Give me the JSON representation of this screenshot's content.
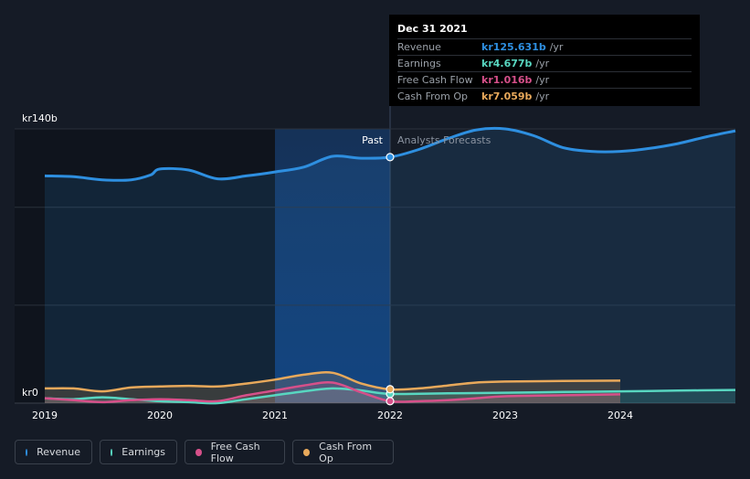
{
  "chart_data": {
    "type": "line",
    "y_top_label": "kr140b",
    "y_zero_label": "kr0",
    "ylim": [
      0,
      140
    ],
    "xlim": [
      2019,
      2024.99
    ],
    "x_ticks": [
      2019,
      2020,
      2021,
      2022,
      2023,
      2024
    ],
    "x_tick_labels": [
      "2019",
      "2020",
      "2021",
      "2022",
      "2023",
      "2024"
    ],
    "past_label": "Past",
    "forecast_label": "Analysts Forecasts",
    "divider_x": 2022.0,
    "highlight_start_x": 2021.0,
    "series": [
      {
        "name": "Revenue",
        "color": "#2e8fe0",
        "area": true,
        "points": [
          [
            2019.0,
            116.0
          ],
          [
            2019.25,
            115.6
          ],
          [
            2019.5,
            114.0
          ],
          [
            2019.75,
            114.0
          ],
          [
            2019.92,
            116.5
          ],
          [
            2020.0,
            119.5
          ],
          [
            2020.25,
            119.0
          ],
          [
            2020.5,
            114.5
          ],
          [
            2020.75,
            116.0
          ],
          [
            2021.0,
            118.0
          ],
          [
            2021.25,
            120.5
          ],
          [
            2021.5,
            126.0
          ],
          [
            2021.75,
            125.0
          ],
          [
            2022.0,
            125.6
          ],
          [
            2022.25,
            129.5
          ],
          [
            2022.5,
            135.0
          ],
          [
            2022.75,
            139.5
          ],
          [
            2023.0,
            140.0
          ],
          [
            2023.25,
            136.5
          ],
          [
            2023.5,
            130.5
          ],
          [
            2023.75,
            128.5
          ],
          [
            2024.0,
            128.5
          ],
          [
            2024.25,
            130.0
          ],
          [
            2024.5,
            132.5
          ],
          [
            2024.75,
            136.0
          ],
          [
            2025.0,
            139.0
          ]
        ]
      },
      {
        "name": "Earnings",
        "color": "#58d6c0",
        "points": [
          [
            2019.0,
            2.5
          ],
          [
            2019.25,
            2.0
          ],
          [
            2019.5,
            3.0
          ],
          [
            2019.75,
            2.0
          ],
          [
            2020.0,
            1.0
          ],
          [
            2020.25,
            0.5
          ],
          [
            2020.5,
            0.0
          ],
          [
            2020.75,
            2.0
          ],
          [
            2021.0,
            4.0
          ],
          [
            2021.25,
            6.0
          ],
          [
            2021.5,
            7.5
          ],
          [
            2021.75,
            6.5
          ],
          [
            2022.0,
            4.7
          ],
          [
            2022.5,
            5.0
          ],
          [
            2023.0,
            5.3
          ],
          [
            2023.5,
            5.7
          ],
          [
            2024.0,
            6.0
          ],
          [
            2024.5,
            6.4
          ],
          [
            2025.0,
            6.7
          ]
        ]
      },
      {
        "name": "Free Cash Flow",
        "color": "#d6508a",
        "points": [
          [
            2019.0,
            2.5
          ],
          [
            2019.25,
            1.5
          ],
          [
            2019.5,
            0.5
          ],
          [
            2019.75,
            1.5
          ],
          [
            2020.0,
            2.0
          ],
          [
            2020.25,
            1.5
          ],
          [
            2020.5,
            1.0
          ],
          [
            2020.75,
            4.0
          ],
          [
            2021.0,
            6.5
          ],
          [
            2021.25,
            9.0
          ],
          [
            2021.5,
            10.5
          ],
          [
            2021.75,
            5.5
          ],
          [
            2022.0,
            1.0
          ],
          [
            2022.25,
            1.0
          ],
          [
            2022.5,
            1.5
          ],
          [
            2022.75,
            2.5
          ],
          [
            2023.0,
            3.5
          ],
          [
            2023.5,
            4.0
          ],
          [
            2024.0,
            4.5
          ]
        ]
      },
      {
        "name": "Cash From Op",
        "color": "#e8a95b",
        "points": [
          [
            2019.0,
            7.5
          ],
          [
            2019.25,
            7.5
          ],
          [
            2019.5,
            6.0
          ],
          [
            2019.75,
            8.0
          ],
          [
            2020.0,
            8.5
          ],
          [
            2020.25,
            8.8
          ],
          [
            2020.5,
            8.5
          ],
          [
            2020.75,
            10.0
          ],
          [
            2021.0,
            12.0
          ],
          [
            2021.25,
            14.5
          ],
          [
            2021.5,
            15.5
          ],
          [
            2021.75,
            10.0
          ],
          [
            2022.0,
            7.0
          ],
          [
            2022.25,
            7.5
          ],
          [
            2022.5,
            9.0
          ],
          [
            2022.75,
            10.5
          ],
          [
            2023.0,
            11.0
          ],
          [
            2023.5,
            11.3
          ],
          [
            2024.0,
            11.5
          ]
        ]
      }
    ]
  },
  "tooltip": {
    "date": "Dec 31 2021",
    "rows": [
      {
        "label": "Revenue",
        "value": "kr125.631b",
        "unit": "/yr",
        "color": "#2e8fe0"
      },
      {
        "label": "Earnings",
        "value": "kr4.677b",
        "unit": "/yr",
        "color": "#58d6c0"
      },
      {
        "label": "Free Cash Flow",
        "value": "kr1.016b",
        "unit": "/yr",
        "color": "#d6508a"
      },
      {
        "label": "Cash From Op",
        "value": "kr7.059b",
        "unit": "/yr",
        "color": "#e8a95b"
      }
    ]
  },
  "legend": [
    {
      "label": "Revenue",
      "color": "#2e8fe0"
    },
    {
      "label": "Earnings",
      "color": "#58d6c0"
    },
    {
      "label": "Free Cash Flow",
      "color": "#d6508a"
    },
    {
      "label": "Cash From Op",
      "color": "#e8a95b"
    }
  ]
}
